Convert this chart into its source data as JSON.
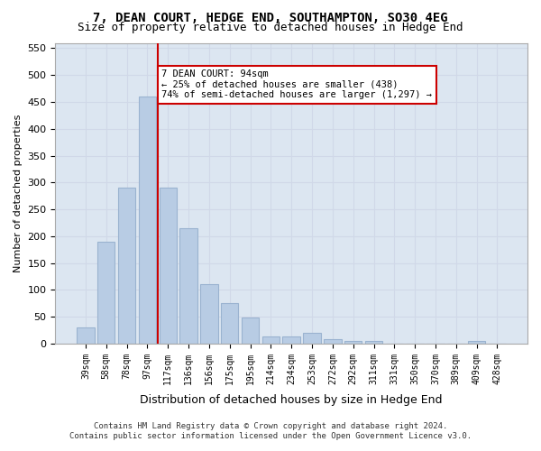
{
  "title": "7, DEAN COURT, HEDGE END, SOUTHAMPTON, SO30 4EG",
  "subtitle": "Size of property relative to detached houses in Hedge End",
  "xlabel": "Distribution of detached houses by size in Hedge End",
  "ylabel": "Number of detached properties",
  "categories": [
    "39sqm",
    "58sqm",
    "78sqm",
    "97sqm",
    "117sqm",
    "136sqm",
    "156sqm",
    "175sqm",
    "195sqm",
    "214sqm",
    "234sqm",
    "253sqm",
    "272sqm",
    "292sqm",
    "311sqm",
    "331sqm",
    "350sqm",
    "370sqm",
    "389sqm",
    "409sqm",
    "428sqm"
  ],
  "values": [
    30,
    190,
    290,
    460,
    290,
    215,
    110,
    75,
    48,
    13,
    13,
    20,
    8,
    5,
    5,
    0,
    0,
    0,
    0,
    5,
    0
  ],
  "bar_color": "#b8cce4",
  "bar_edgecolor": "#9ab3d0",
  "grid_color": "#d0d8e8",
  "background_color": "#dce6f1",
  "property_line_x": 3.5,
  "property_line_color": "#cc0000",
  "annotation_text": "7 DEAN COURT: 94sqm\n← 25% of detached houses are smaller (438)\n74% of semi-detached houses are larger (1,297) →",
  "annotation_box_color": "#cc0000",
  "ylim": [
    0,
    560
  ],
  "yticks": [
    0,
    50,
    100,
    150,
    200,
    250,
    300,
    350,
    400,
    450,
    500,
    550
  ],
  "footnote1": "Contains HM Land Registry data © Crown copyright and database right 2024.",
  "footnote2": "Contains public sector information licensed under the Open Government Licence v3.0."
}
